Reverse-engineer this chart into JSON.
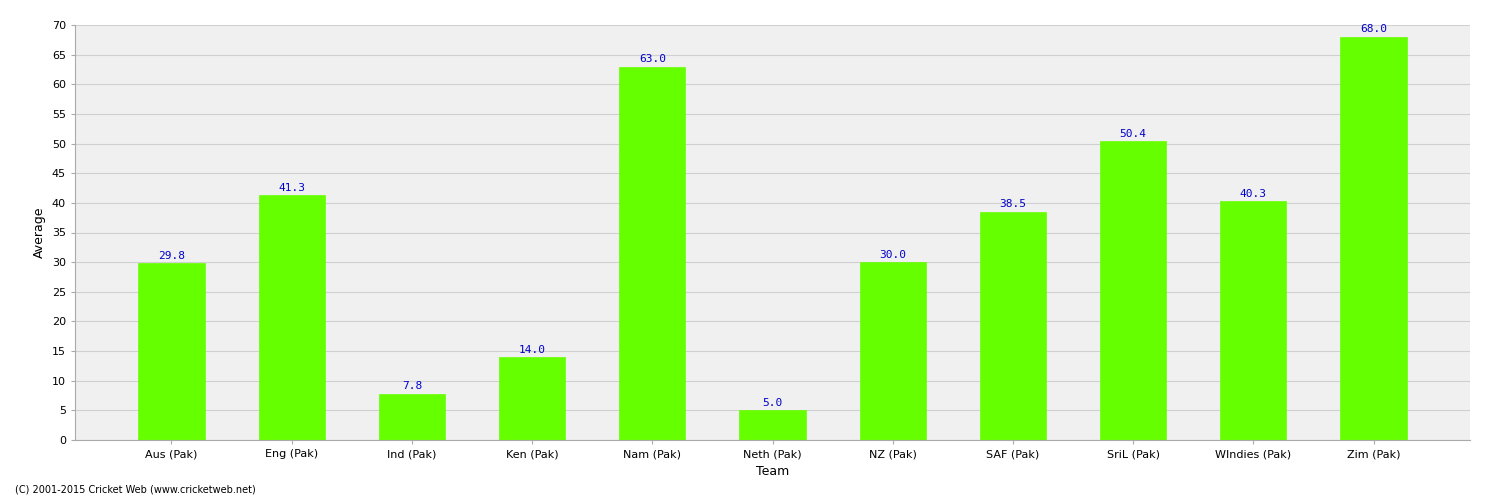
{
  "categories": [
    "Aus (Pak)",
    "Eng (Pak)",
    "Ind (Pak)",
    "Ken (Pak)",
    "Nam (Pak)",
    "Neth (Pak)",
    "NZ (Pak)",
    "SAF (Pak)",
    "SriL (Pak)",
    "WIndies (Pak)",
    "Zim (Pak)"
  ],
  "values": [
    29.8,
    41.3,
    7.8,
    14.0,
    63.0,
    5.0,
    30.0,
    38.5,
    50.4,
    40.3,
    68.0
  ],
  "bar_color": "#66FF00",
  "bar_edge_color": "#66FF00",
  "label_color": "#0000CC",
  "xlabel": "Team",
  "ylabel": "Average",
  "ylim": [
    0,
    70
  ],
  "yticks": [
    0,
    5,
    10,
    15,
    20,
    25,
    30,
    35,
    40,
    45,
    50,
    55,
    60,
    65,
    70
  ],
  "grid_color": "#d0d0d0",
  "background_color": "#f0f0f0",
  "fig_background": "#ffffff",
  "footer": "(C) 2001-2015 Cricket Web (www.cricketweb.net)",
  "label_fontsize": 8,
  "axis_label_fontsize": 9,
  "tick_fontsize": 8,
  "bar_width": 0.55
}
